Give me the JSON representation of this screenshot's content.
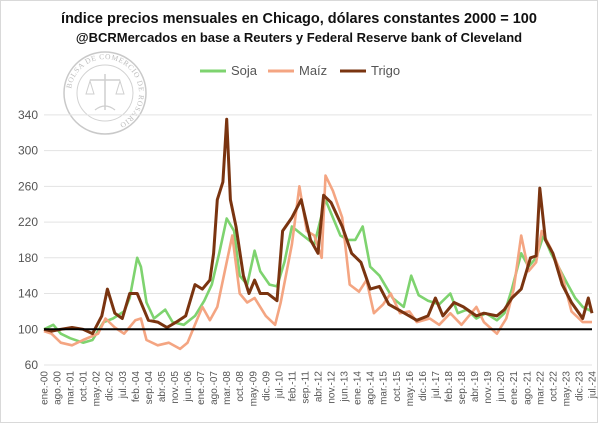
{
  "header": {
    "title": "índice precios mensuales en Chicago, dólares constantes 2000 = 100",
    "subtitle": "@BCRMercados en base a Reuters y Federal Reserve bank of Cleveland"
  },
  "seal": {
    "text": "BOLSA DE COMERCIO DE ROSARIO"
  },
  "chart_data": {
    "type": "line",
    "x_range": [
      "2000-01",
      "2024-07"
    ],
    "ylim": [
      60,
      360
    ],
    "y_ticks": [
      60,
      100,
      140,
      180,
      220,
      260,
      300,
      340
    ],
    "x_ticks": [
      "ene.-00",
      "ago.-00",
      "mar.-01",
      "oct.-01",
      "may.-02",
      "dic.-02",
      "jul.-03",
      "feb.-04",
      "sep.-04",
      "abr.-05",
      "nov.-05",
      "jun.-06",
      "ene.-07",
      "ago.-07",
      "mar.-08",
      "oct.-08",
      "may.-09",
      "dic.-09",
      "jul.-10",
      "feb.-11",
      "sep.-11",
      "abr.-12",
      "nov.-12",
      "jun.-13",
      "ene.-14",
      "ago.-14",
      "mar.-15",
      "oct.-15",
      "may.-16",
      "dic.-16",
      "jul.-17",
      "feb.-18",
      "sep.-18",
      "abr.-19",
      "nov.-19",
      "jun.-20",
      "ene.-21",
      "ago.-21",
      "mar.-22",
      "oct.-22",
      "may.-23",
      "dic.-23",
      "jul.-24"
    ],
    "reference_line": 100,
    "grid": "horizontal",
    "legend_position": "top",
    "series": [
      {
        "name": "Soja",
        "color": "#7ed36f",
        "points": [
          [
            "2000-01",
            100
          ],
          [
            "2000-06",
            105
          ],
          [
            "2000-10",
            95
          ],
          [
            "2001-03",
            90
          ],
          [
            "2001-10",
            85
          ],
          [
            "2002-03",
            88
          ],
          [
            "2002-09",
            108
          ],
          [
            "2003-02",
            112
          ],
          [
            "2003-08",
            120
          ],
          [
            "2003-11",
            135
          ],
          [
            "2004-03",
            180
          ],
          [
            "2004-05",
            170
          ],
          [
            "2004-08",
            130
          ],
          [
            "2004-12",
            112
          ],
          [
            "2005-06",
            122
          ],
          [
            "2005-10",
            108
          ],
          [
            "2006-04",
            105
          ],
          [
            "2006-10",
            115
          ],
          [
            "2007-03",
            132
          ],
          [
            "2007-07",
            150
          ],
          [
            "2007-11",
            185
          ],
          [
            "2008-03",
            224
          ],
          [
            "2008-07",
            210
          ],
          [
            "2008-10",
            160
          ],
          [
            "2009-02",
            150
          ],
          [
            "2009-06",
            188
          ],
          [
            "2009-09",
            165
          ],
          [
            "2010-02",
            150
          ],
          [
            "2010-06",
            148
          ],
          [
            "2010-10",
            175
          ],
          [
            "2011-02",
            215
          ],
          [
            "2011-08",
            205
          ],
          [
            "2012-02",
            195
          ],
          [
            "2012-08",
            245
          ],
          [
            "2012-12",
            225
          ],
          [
            "2013-04",
            205
          ],
          [
            "2013-08",
            200
          ],
          [
            "2013-12",
            200
          ],
          [
            "2014-04",
            215
          ],
          [
            "2014-08",
            170
          ],
          [
            "2015-01",
            160
          ],
          [
            "2015-08",
            135
          ],
          [
            "2016-02",
            125
          ],
          [
            "2016-06",
            160
          ],
          [
            "2016-10",
            138
          ],
          [
            "2017-03",
            132
          ],
          [
            "2017-09",
            128
          ],
          [
            "2018-03",
            140
          ],
          [
            "2018-07",
            118
          ],
          [
            "2018-12",
            122
          ],
          [
            "2019-05",
            112
          ],
          [
            "2019-10",
            118
          ],
          [
            "2020-04",
            110
          ],
          [
            "2020-08",
            118
          ],
          [
            "2020-12",
            145
          ],
          [
            "2021-05",
            185
          ],
          [
            "2021-09",
            170
          ],
          [
            "2022-01",
            180
          ],
          [
            "2022-05",
            205
          ],
          [
            "2022-09",
            185
          ],
          [
            "2023-01",
            170
          ],
          [
            "2023-06",
            150
          ],
          [
            "2023-10",
            135
          ],
          [
            "2024-02",
            125
          ],
          [
            "2024-07",
            120
          ]
        ]
      },
      {
        "name": "Maíz",
        "color": "#f4a582",
        "points": [
          [
            "2000-01",
            98
          ],
          [
            "2000-05",
            95
          ],
          [
            "2000-10",
            85
          ],
          [
            "2001-04",
            82
          ],
          [
            "2001-10",
            88
          ],
          [
            "2002-06",
            95
          ],
          [
            "2002-10",
            112
          ],
          [
            "2003-03",
            102
          ],
          [
            "2003-08",
            95
          ],
          [
            "2004-02",
            110
          ],
          [
            "2004-05",
            112
          ],
          [
            "2004-08",
            88
          ],
          [
            "2005-02",
            82
          ],
          [
            "2005-08",
            85
          ],
          [
            "2006-02",
            78
          ],
          [
            "2006-06",
            85
          ],
          [
            "2006-11",
            110
          ],
          [
            "2007-02",
            125
          ],
          [
            "2007-06",
            110
          ],
          [
            "2007-10",
            125
          ],
          [
            "2008-02",
            165
          ],
          [
            "2008-06",
            205
          ],
          [
            "2008-10",
            140
          ],
          [
            "2009-02",
            130
          ],
          [
            "2009-06",
            135
          ],
          [
            "2009-12",
            115
          ],
          [
            "2010-05",
            105
          ],
          [
            "2010-08",
            130
          ],
          [
            "2011-02",
            195
          ],
          [
            "2011-06",
            260
          ],
          [
            "2011-10",
            210
          ],
          [
            "2012-02",
            205
          ],
          [
            "2012-06",
            180
          ],
          [
            "2012-08",
            272
          ],
          [
            "2012-12",
            255
          ],
          [
            "2013-05",
            225
          ],
          [
            "2013-09",
            150
          ],
          [
            "2014-02",
            142
          ],
          [
            "2014-06",
            155
          ],
          [
            "2014-10",
            118
          ],
          [
            "2015-03",
            128
          ],
          [
            "2015-07",
            140
          ],
          [
            "2015-12",
            118
          ],
          [
            "2016-05",
            120
          ],
          [
            "2016-09",
            108
          ],
          [
            "2017-04",
            112
          ],
          [
            "2017-09",
            105
          ],
          [
            "2018-03",
            118
          ],
          [
            "2018-09",
            105
          ],
          [
            "2019-05",
            125
          ],
          [
            "2019-09",
            108
          ],
          [
            "2020-04",
            95
          ],
          [
            "2020-09",
            112
          ],
          [
            "2021-01",
            145
          ],
          [
            "2021-05",
            205
          ],
          [
            "2021-09",
            165
          ],
          [
            "2022-01",
            175
          ],
          [
            "2022-04",
            210
          ],
          [
            "2022-09",
            190
          ],
          [
            "2023-03",
            160
          ],
          [
            "2023-08",
            120
          ],
          [
            "2024-02",
            108
          ],
          [
            "2024-07",
            108
          ]
        ]
      },
      {
        "name": "Trigo",
        "color": "#7a3410",
        "points": [
          [
            "2000-01",
            100
          ],
          [
            "2000-05",
            98
          ],
          [
            "2000-10",
            100
          ],
          [
            "2001-04",
            102
          ],
          [
            "2001-10",
            100
          ],
          [
            "2002-03",
            95
          ],
          [
            "2002-08",
            115
          ],
          [
            "2002-11",
            145
          ],
          [
            "2003-03",
            118
          ],
          [
            "2003-07",
            112
          ],
          [
            "2003-11",
            140
          ],
          [
            "2004-03",
            140
          ],
          [
            "2004-06",
            125
          ],
          [
            "2004-09",
            110
          ],
          [
            "2005-02",
            108
          ],
          [
            "2005-07",
            102
          ],
          [
            "2005-12",
            108
          ],
          [
            "2006-05",
            115
          ],
          [
            "2006-10",
            150
          ],
          [
            "2007-02",
            145
          ],
          [
            "2007-06",
            155
          ],
          [
            "2007-08",
            185
          ],
          [
            "2007-10",
            245
          ],
          [
            "2008-01",
            265
          ],
          [
            "2008-03",
            335
          ],
          [
            "2008-05",
            245
          ],
          [
            "2008-08",
            215
          ],
          [
            "2008-12",
            160
          ],
          [
            "2009-03",
            140
          ],
          [
            "2009-06",
            155
          ],
          [
            "2009-09",
            140
          ],
          [
            "2010-01",
            140
          ],
          [
            "2010-06",
            132
          ],
          [
            "2010-09",
            210
          ],
          [
            "2011-02",
            225
          ],
          [
            "2011-07",
            245
          ],
          [
            "2011-12",
            200
          ],
          [
            "2012-04",
            185
          ],
          [
            "2012-07",
            250
          ],
          [
            "2012-11",
            242
          ],
          [
            "2013-05",
            215
          ],
          [
            "2013-10",
            185
          ],
          [
            "2014-03",
            175
          ],
          [
            "2014-08",
            145
          ],
          [
            "2015-01",
            148
          ],
          [
            "2015-06",
            128
          ],
          [
            "2015-11",
            122
          ],
          [
            "2016-05",
            115
          ],
          [
            "2016-09",
            110
          ],
          [
            "2017-03",
            115
          ],
          [
            "2017-07",
            135
          ],
          [
            "2017-11",
            115
          ],
          [
            "2018-05",
            130
          ],
          [
            "2018-10",
            125
          ],
          [
            "2019-05",
            115
          ],
          [
            "2019-09",
            118
          ],
          [
            "2020-04",
            115
          ],
          [
            "2020-08",
            122
          ],
          [
            "2020-12",
            135
          ],
          [
            "2021-05",
            145
          ],
          [
            "2021-10",
            180
          ],
          [
            "2022-01",
            182
          ],
          [
            "2022-03",
            258
          ],
          [
            "2022-06",
            200
          ],
          [
            "2022-10",
            185
          ],
          [
            "2023-03",
            150
          ],
          [
            "2023-08",
            130
          ],
          [
            "2024-02",
            112
          ],
          [
            "2024-05",
            135
          ],
          [
            "2024-07",
            118
          ]
        ]
      }
    ]
  }
}
